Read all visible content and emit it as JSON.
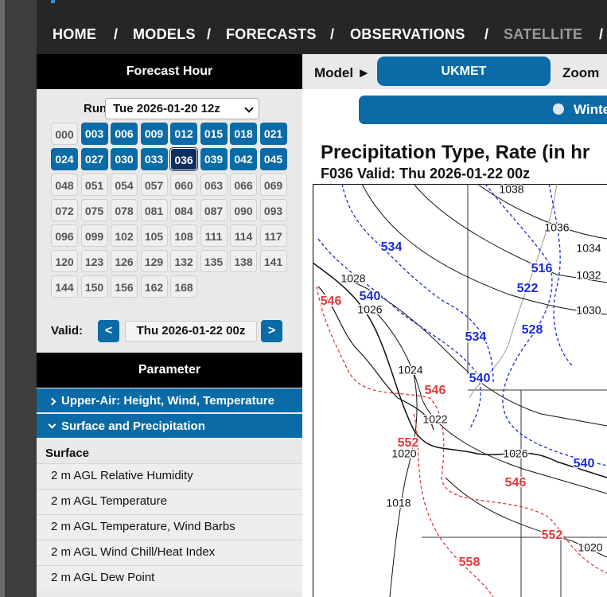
{
  "nav": {
    "items": [
      "HOME",
      "MODELS",
      "FORECASTS",
      "OBSERVATIONS",
      "SATELLITE"
    ],
    "separator": "/"
  },
  "forecast_hour": {
    "header": "Forecast Hour",
    "run_label": "Run:",
    "run_value": "Tue 2026-01-20 12z",
    "hours": [
      {
        "label": "000",
        "available": false
      },
      {
        "label": "003",
        "available": true
      },
      {
        "label": "006",
        "available": true
      },
      {
        "label": "009",
        "available": true
      },
      {
        "label": "012",
        "available": true
      },
      {
        "label": "015",
        "available": true
      },
      {
        "label": "018",
        "available": true
      },
      {
        "label": "021",
        "available": true
      },
      {
        "label": "024",
        "available": true
      },
      {
        "label": "027",
        "available": true
      },
      {
        "label": "030",
        "available": true
      },
      {
        "label": "033",
        "available": true
      },
      {
        "label": "036",
        "available": true,
        "selected": true
      },
      {
        "label": "039",
        "available": true
      },
      {
        "label": "042",
        "available": true
      },
      {
        "label": "045",
        "available": true
      },
      {
        "label": "048",
        "available": false
      },
      {
        "label": "051",
        "available": false
      },
      {
        "label": "054",
        "available": false
      },
      {
        "label": "057",
        "available": false
      },
      {
        "label": "060",
        "available": false
      },
      {
        "label": "063",
        "available": false
      },
      {
        "label": "066",
        "available": false
      },
      {
        "label": "069",
        "available": false
      },
      {
        "label": "072",
        "available": false
      },
      {
        "label": "075",
        "available": false
      },
      {
        "label": "078",
        "available": false
      },
      {
        "label": "081",
        "available": false
      },
      {
        "label": "084",
        "available": false
      },
      {
        "label": "087",
        "available": false
      },
      {
        "label": "090",
        "available": false
      },
      {
        "label": "093",
        "available": false
      },
      {
        "label": "096",
        "available": false
      },
      {
        "label": "099",
        "available": false
      },
      {
        "label": "102",
        "available": false
      },
      {
        "label": "105",
        "available": false
      },
      {
        "label": "108",
        "available": false
      },
      {
        "label": "111",
        "available": false
      },
      {
        "label": "114",
        "available": false
      },
      {
        "label": "117",
        "available": false
      },
      {
        "label": "120",
        "available": false
      },
      {
        "label": "123",
        "available": false
      },
      {
        "label": "126",
        "available": false
      },
      {
        "label": "129",
        "available": false
      },
      {
        "label": "132",
        "available": false
      },
      {
        "label": "135",
        "available": false
      },
      {
        "label": "138",
        "available": false
      },
      {
        "label": "141",
        "available": false
      },
      {
        "label": "144",
        "available": false
      },
      {
        "label": "150",
        "available": false
      },
      {
        "label": "156",
        "available": false
      },
      {
        "label": "162",
        "available": false
      },
      {
        "label": "168",
        "available": false
      }
    ],
    "valid_label": "Valid:",
    "valid_value": "Thu 2026-01-22 00z",
    "prev": "<",
    "next": ">"
  },
  "parameter": {
    "header": "Parameter",
    "groups": [
      {
        "label": "Upper-Air: Height, Wind, Temperature",
        "expanded": false
      },
      {
        "label": "Surface and Precipitation",
        "expanded": true
      }
    ],
    "section": "Surface",
    "items": [
      "2 m AGL Relative Humidity",
      "2 m AGL Temperature",
      "2 m AGL Temperature, Wind Barbs",
      "2 m AGL Wind Chill/Heat Index",
      "2 m AGL Dew Point"
    ]
  },
  "toolbar": {
    "model_label": "Model ►",
    "model": "UKMET",
    "zoom_label": "Zoom",
    "banner": "Winte"
  },
  "chart": {
    "title": "Precipitation Type, Rate (in hr",
    "subtitle": "F036 Valid: Thu 2026-01-22 00z",
    "isobars": [
      "1038",
      "1036",
      "1034",
      "1032",
      "1030",
      "1028",
      "1026",
      "1024",
      "1022",
      "1020",
      "1026",
      "1018",
      "1020"
    ],
    "blue_thickness": [
      "534",
      "516",
      "522",
      "540",
      "528",
      "534",
      "540",
      "540"
    ],
    "red_thickness": [
      "546",
      "546",
      "552",
      "546",
      "552",
      "558"
    ]
  }
}
